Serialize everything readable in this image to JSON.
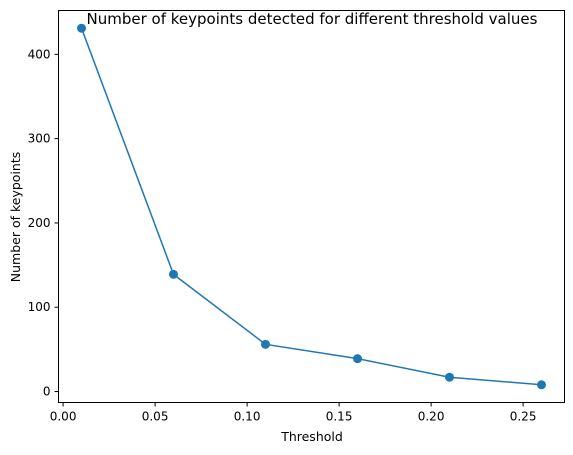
{
  "chart_data": {
    "type": "line",
    "title": "Number of keypoints detected for different threshold values",
    "xlabel": "Threshold",
    "ylabel": "Number of keypoints",
    "x": [
      0.01,
      0.06,
      0.11,
      0.16,
      0.21,
      0.26
    ],
    "series": [
      {
        "values": [
          431,
          139,
          56,
          39,
          17,
          8
        ],
        "color": "#1f77b4",
        "marker": "circle"
      }
    ],
    "xlim": [
      -0.0025,
      0.2725
    ],
    "ylim": [
      -13,
      452
    ],
    "xticks": [
      0.0,
      0.05,
      0.1,
      0.15,
      0.2,
      0.25
    ],
    "xtick_labels": [
      "0.00",
      "0.05",
      "0.10",
      "0.15",
      "0.20",
      "0.25"
    ],
    "yticks": [
      0,
      100,
      200,
      300,
      400
    ],
    "ytick_labels": [
      "0",
      "100",
      "200",
      "300",
      "400"
    ],
    "grid": false,
    "legend": "none"
  }
}
